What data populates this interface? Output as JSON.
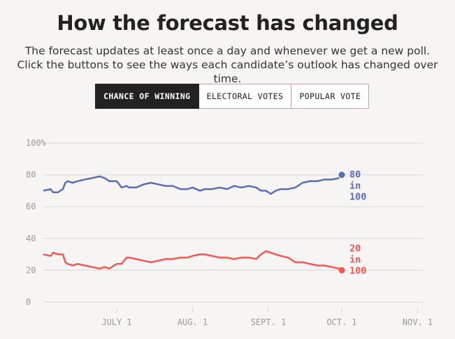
{
  "header": {
    "title": "How the forecast has changed",
    "subtitle": "The forecast updates at least once a day and whenever we get a new poll. Click the buttons to see the ways each candidate’s outlook has changed over time."
  },
  "tabs": [
    {
      "label": "CHANCE OF WINNING",
      "active": true
    },
    {
      "label": "ELECTORAL VOTES",
      "active": false
    },
    {
      "label": "POPULAR VOTE",
      "active": false
    }
  ],
  "colors": {
    "blue": "#5b6db5",
    "red": "#ef5a52",
    "grid": "#d8d8d8",
    "axis": "#999999"
  },
  "chart_data": {
    "type": "line",
    "title": "",
    "xlabel": "",
    "ylabel": "",
    "ylim": [
      0,
      100
    ],
    "y_ticks": [
      {
        "value": 100,
        "label": "100%"
      },
      {
        "value": 80,
        "label": "80"
      },
      {
        "value": 60,
        "label": "60"
      },
      {
        "value": 40,
        "label": "40"
      },
      {
        "value": 20,
        "label": "20"
      },
      {
        "value": 0,
        "label": "0"
      }
    ],
    "x_range": [
      "2020-06-01",
      "2020-11-03"
    ],
    "x_ticks": [
      {
        "date": "2020-07-01",
        "label": "JULY 1"
      },
      {
        "date": "2020-08-01",
        "label": "AUG. 1"
      },
      {
        "date": "2020-09-01",
        "label": "SEPT. 1"
      },
      {
        "date": "2020-10-01",
        "label": "OCT. 1"
      },
      {
        "date": "2020-11-01",
        "label": "NOV. 1"
      }
    ],
    "x": [
      "2020-06-01",
      "2020-06-04",
      "2020-06-05",
      "2020-06-07",
      "2020-06-09",
      "2020-06-10",
      "2020-06-11",
      "2020-06-13",
      "2020-06-15",
      "2020-06-18",
      "2020-06-21",
      "2020-06-24",
      "2020-06-26",
      "2020-06-28",
      "2020-07-01",
      "2020-07-03",
      "2020-07-05",
      "2020-07-06",
      "2020-07-09",
      "2020-07-12",
      "2020-07-15",
      "2020-07-18",
      "2020-07-21",
      "2020-07-24",
      "2020-07-27",
      "2020-07-30",
      "2020-08-01",
      "2020-08-04",
      "2020-08-06",
      "2020-08-09",
      "2020-08-12",
      "2020-08-15",
      "2020-08-18",
      "2020-08-21",
      "2020-08-24",
      "2020-08-27",
      "2020-08-29",
      "2020-08-31",
      "2020-09-02",
      "2020-09-04",
      "2020-09-06",
      "2020-09-09",
      "2020-09-12",
      "2020-09-15",
      "2020-09-18",
      "2020-09-21",
      "2020-09-24",
      "2020-09-27",
      "2020-09-30"
    ],
    "series": [
      {
        "color": "#5b6db5",
        "values": [
          70,
          71,
          69,
          69,
          71,
          75,
          76,
          75,
          76,
          77,
          78,
          79,
          78,
          76,
          76,
          72,
          73,
          72,
          72,
          74,
          75,
          74,
          73,
          73,
          71,
          71,
          72,
          70,
          71,
          71,
          72,
          71,
          73,
          72,
          73,
          72,
          70,
          70,
          68,
          70,
          71,
          71,
          72,
          75,
          76,
          76,
          77,
          77,
          78
        ],
        "end_label": [
          "80",
          "in",
          "100"
        ]
      },
      {
        "color": "#ef5a52",
        "values": [
          30,
          29,
          31,
          30,
          30,
          25,
          24,
          23,
          24,
          23,
          22,
          21,
          22,
          21,
          24,
          24,
          28,
          28,
          27,
          26,
          25,
          26,
          27,
          27,
          28,
          28,
          29,
          30,
          30,
          29,
          28,
          28,
          27,
          28,
          28,
          27,
          30,
          32,
          31,
          30,
          29,
          28,
          25,
          25,
          24,
          23,
          23,
          22,
          21
        ],
        "end_label": [
          "20",
          "in",
          "100"
        ]
      }
    ],
    "final_points": [
      {
        "date": "2020-10-01",
        "value": 80
      },
      {
        "date": "2020-10-01",
        "value": 20
      }
    ]
  }
}
